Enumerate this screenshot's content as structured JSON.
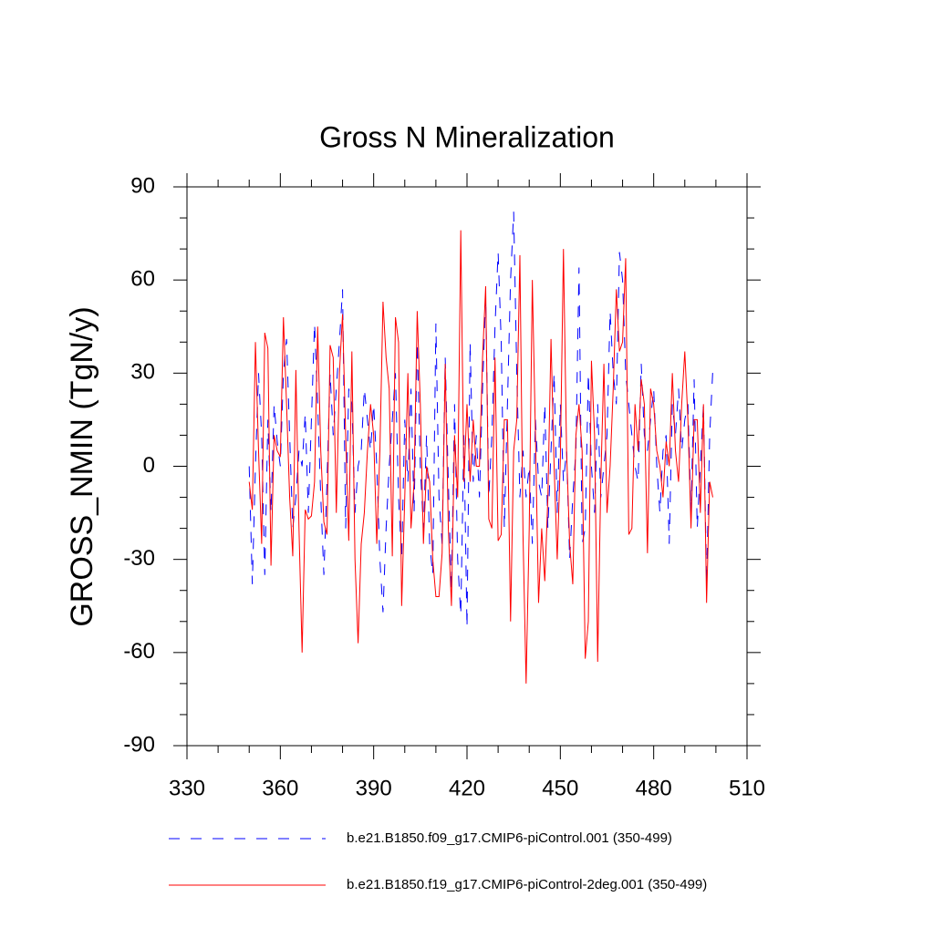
{
  "chart_data": {
    "type": "line",
    "title": "Gross N Mineralization",
    "y_label": "GROSS_NMIN  (TgN/y)",
    "x": [
      350,
      351,
      352,
      353,
      354,
      355,
      356,
      357,
      358,
      359,
      360,
      361,
      362,
      363,
      364,
      365,
      366,
      367,
      368,
      369,
      370,
      371,
      372,
      373,
      374,
      375,
      376,
      377,
      378,
      379,
      380,
      381,
      382,
      383,
      384,
      385,
      386,
      387,
      388,
      389,
      390,
      391,
      392,
      393,
      394,
      395,
      396,
      397,
      398,
      399,
      400,
      401,
      402,
      403,
      404,
      405,
      406,
      407,
      408,
      409,
      410,
      411,
      412,
      413,
      414,
      415,
      416,
      417,
      418,
      419,
      420,
      421,
      422,
      423,
      424,
      425,
      426,
      427,
      428,
      429,
      430,
      431,
      432,
      433,
      434,
      435,
      436,
      437,
      438,
      439,
      440,
      441,
      442,
      443,
      444,
      445,
      446,
      447,
      448,
      449,
      450,
      451,
      452,
      453,
      454,
      455,
      456,
      457,
      458,
      459,
      460,
      461,
      462,
      463,
      464,
      465,
      466,
      467,
      468,
      469,
      470,
      471,
      472,
      473,
      474,
      475,
      476,
      477,
      478,
      479,
      480,
      481,
      482,
      483,
      484,
      485,
      486,
      487,
      488,
      489,
      490,
      491,
      492,
      493,
      494,
      495,
      496,
      497,
      498,
      499
    ],
    "series": [
      {
        "name": "b.e21.B1850.f09_g17.CMIP6-piControl.001 (350-499)",
        "color": "#0000ff",
        "dash": true,
        "values": [
          0,
          -38,
          0,
          30,
          10,
          -35,
          15,
          -15,
          20,
          8,
          0,
          30,
          41,
          10,
          -20,
          -10,
          5,
          0,
          17,
          -15,
          15,
          46,
          20,
          -10,
          -35,
          -5,
          30,
          10,
          25,
          40,
          57,
          -20,
          25,
          20,
          -15,
          0,
          5,
          25,
          15,
          5,
          20,
          0,
          -30,
          -47,
          -20,
          0,
          15,
          30,
          -10,
          -30,
          15,
          -5,
          25,
          -15,
          40,
          0,
          -20,
          10,
          -25,
          -35,
          46,
          -10,
          -25,
          35,
          -5,
          -40,
          20,
          -30,
          -48,
          10,
          -52,
          40,
          -5,
          10,
          -10,
          25,
          55,
          -10,
          10,
          45,
          69,
          40,
          -20,
          20,
          60,
          82,
          30,
          -10,
          5,
          -10,
          0,
          -25,
          15,
          -5,
          -10,
          20,
          -20,
          5,
          30,
          -15,
          20,
          -5,
          5,
          -30,
          -10,
          5,
          64,
          -25,
          -20,
          30,
          0,
          -15,
          20,
          -10,
          0,
          10,
          50,
          30,
          20,
          69,
          60,
          30,
          20,
          10,
          0,
          -5,
          33,
          10,
          5,
          15,
          25,
          0,
          -15,
          5,
          10,
          -25,
          20,
          10,
          25,
          5,
          15,
          20,
          -15,
          28,
          -20,
          0,
          20,
          -38,
          10,
          31
        ]
      },
      {
        "name": "b.e21.B1850.f19_g17.CMIP6-piControl-2deg.001 (350-499)",
        "color": "#ff0000",
        "dash": false,
        "values": [
          -5,
          -14,
          40,
          5,
          -25,
          43,
          38,
          -32,
          10,
          5,
          3,
          48,
          20,
          -10,
          -29,
          31,
          -20,
          -60,
          -14,
          -17,
          -16,
          -5,
          45,
          5,
          -18,
          -22,
          39,
          35,
          -15,
          30,
          49,
          10,
          -24,
          37,
          -30,
          -57,
          -25,
          -15,
          5,
          20,
          10,
          -25,
          5,
          53,
          35,
          25,
          -29,
          48,
          40,
          -45,
          -10,
          30,
          -20,
          -5,
          50,
          20,
          -25,
          0,
          -5,
          -30,
          -42,
          -42,
          -28,
          33,
          -20,
          -45,
          10,
          -10,
          76,
          -5,
          20,
          -5,
          15,
          0,
          0,
          35,
          58,
          -17,
          -20,
          35,
          -24,
          -22,
          15,
          15,
          -50,
          5,
          15,
          68,
          -22,
          -70,
          -20,
          60,
          10,
          -44,
          -20,
          -37,
          -10,
          41,
          0,
          -30,
          2,
          70,
          5,
          -25,
          -38,
          10,
          20,
          5,
          -62,
          -50,
          34,
          10,
          -63,
          -5,
          33,
          -15,
          0,
          25,
          57,
          37,
          40,
          67,
          -22,
          -20,
          20,
          5,
          28,
          20,
          -28,
          25,
          20,
          5,
          0,
          -10,
          8,
          0,
          30,
          5,
          -5,
          20,
          37,
          15,
          -20,
          15,
          15,
          -15,
          20,
          -44,
          -5,
          -10
        ]
      }
    ],
    "xlim": [
      330,
      510
    ],
    "xticks": [
      330,
      360,
      390,
      420,
      450,
      480,
      510
    ],
    "ylim": [
      -90,
      90
    ],
    "yticks": [
      -90,
      -60,
      -30,
      0,
      30,
      60,
      90
    ]
  }
}
